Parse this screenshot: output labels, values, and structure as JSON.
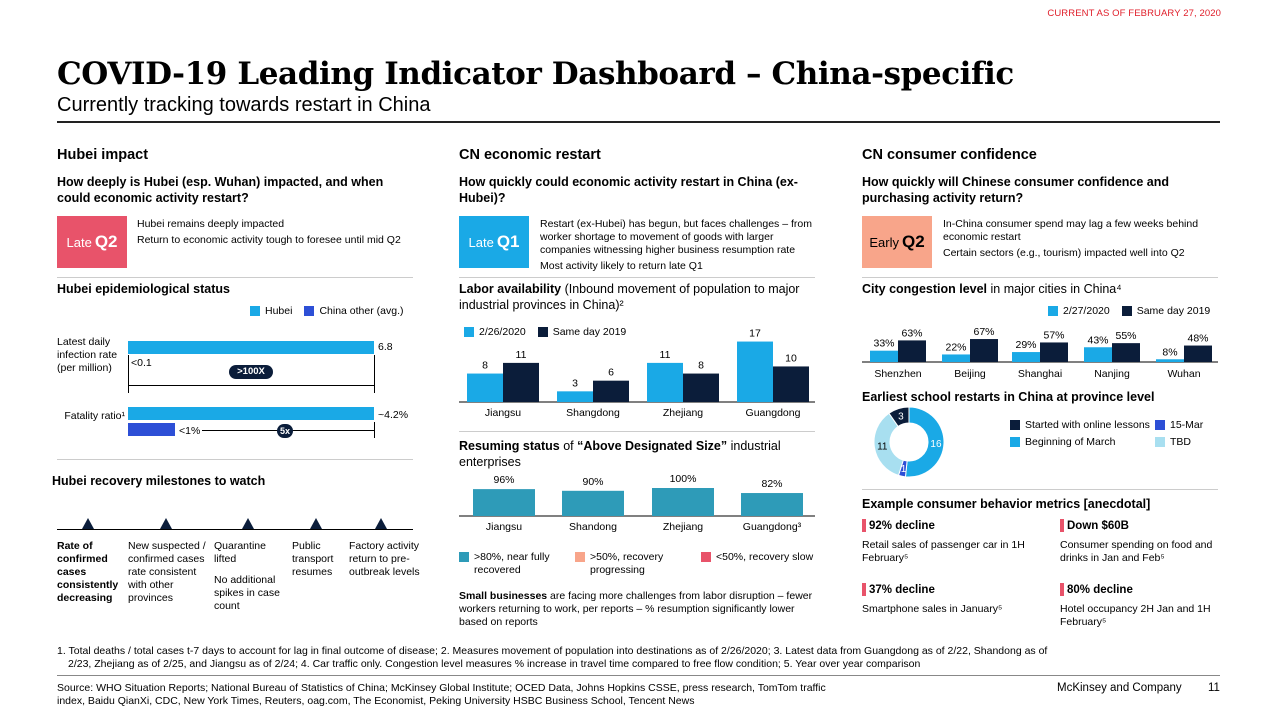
{
  "header": {
    "current": "CURRENT AS OF FEBRUARY 27, 2020",
    "title": "COVID-19 Leading Indicator Dashboard – China-specific",
    "subtitle": "Currently tracking towards restart in China"
  },
  "colors": {
    "cyan": "#1aa9e6",
    "navy": "#0b1d3a",
    "blue": "#2d4fd6",
    "light": "#a8dff0",
    "red": "#e8536a",
    "salmon": "#f8a58a",
    "teal": "#2e9bb8"
  },
  "hubei": {
    "heading": "Hubei impact",
    "question": "How deeply is Hubei (esp. Wuhan) impacted, and when could economic activity restart?",
    "tag_pre": "Late",
    "tag_q": "Q2",
    "notes": [
      "Hubei remains deeply impacted",
      "Return to economic activity tough to foresee until mid Q2"
    ],
    "epi_heading": "Hubei epidemiological status",
    "legend": [
      "Hubei",
      "China other (avg.)"
    ],
    "row1_label": "Latest daily infection rate (per million)",
    "row1_hubei": "6.8",
    "row1_other": "<0.1",
    "row1_mult": ">100X",
    "row2_label": "Fatality ratio¹",
    "row2_hubei": "~4.2%",
    "row2_other": "<1%",
    "row2_mult": "5x",
    "milestones_heading": "Hubei recovery milestones to watch",
    "milestones": [
      {
        "text": "Rate of confirmed cases consistently decreasing",
        "bold": true
      },
      {
        "text": "New suspected / confirmed cases rate consistent with other provinces",
        "bold": false
      },
      {
        "text": "Quarantine lifted",
        "extra": "No additional spikes in case count",
        "bold": false
      },
      {
        "text": "Public transport resumes",
        "bold": false
      },
      {
        "text": "Factory activity return to pre-outbreak levels",
        "bold": false
      }
    ]
  },
  "economic": {
    "heading": "CN economic restart",
    "question": "How quickly could economic activity restart in China (ex-Hubei)?",
    "tag_pre": "Late",
    "tag_q": "Q1",
    "notes": [
      "Restart (ex-Hubei) has begun, but faces challenges – from worker shortage to movement of goods with larger companies witnessing higher business resumption rate",
      "Most activity likely to return late Q1"
    ],
    "labor_heading_b": "Labor availability",
    "labor_heading_n": " (Inbound movement of population to major industrial provinces in China)²",
    "legend": [
      "2/26/2020",
      "Same day 2019"
    ],
    "resuming_heading_b1": "Resuming status",
    "resuming_heading_n1": " of ",
    "resuming_heading_b2": "“Above Designated Size”",
    "resuming_heading_n2": " industrial enterprises",
    "resuming_legend": [
      ">80%, near fully recovered",
      ">50%, recovery progressing",
      "<50%, recovery slow"
    ],
    "small_b": "Small businesses",
    "small_n": " are facing more challenges from labor disruption – fewer workers returning to work, per reports – % resumption significantly lower based on reports"
  },
  "consumer": {
    "heading": "CN consumer confidence",
    "question": "How quickly will Chinese consumer confidence and purchasing activity return?",
    "tag_pre": "Early",
    "tag_q": "Q2",
    "notes": [
      "In-China consumer spend may lag a few weeks behind economic restart",
      "Certain sectors (e.g., tourism) impacted well into Q2"
    ],
    "city_heading_b": "City congestion level",
    "city_heading_n": " in major cities in China⁴",
    "legend": [
      "2/27/2020",
      "Same day 2019"
    ],
    "school_heading": "Earliest school restarts in China at province level",
    "school_legend": [
      "Started with online lessons",
      "15-Mar",
      "Beginning of March",
      "TBD"
    ],
    "metrics_heading": "Example consumer behavior metrics [anecdotal]",
    "metrics": [
      {
        "h": "92% decline",
        "t": "Retail sales of passenger car in 1H February⁵"
      },
      {
        "h": "Down $60B",
        "t": "Consumer spending on food and drinks in Jan and Feb⁵"
      },
      {
        "h": "37% decline",
        "t": "Smartphone sales in January⁵"
      },
      {
        "h": "80% decline",
        "t": "Hotel occupancy 2H Jan and 1H February⁵"
      }
    ]
  },
  "chart_data": [
    {
      "type": "bar",
      "title": "Labor availability",
      "categories": [
        "Jiangsu",
        "Shangdong",
        "Zhejiang",
        "Guangdong"
      ],
      "series": [
        {
          "name": "2/26/2020",
          "values": [
            8,
            3,
            11,
            17
          ]
        },
        {
          "name": "Same day 2019",
          "values": [
            11,
            6,
            8,
            10
          ]
        }
      ],
      "ylim": [
        0,
        18
      ]
    },
    {
      "type": "bar",
      "title": "Resuming status",
      "categories": [
        "Jiangsu",
        "Shandong",
        "Zhejiang",
        "Guangdong³"
      ],
      "values": [
        96,
        90,
        100,
        82
      ],
      "value_labels": [
        "96%",
        "90%",
        "100%",
        "82%"
      ],
      "ylim": [
        0,
        100
      ]
    },
    {
      "type": "bar",
      "title": "City congestion level",
      "categories": [
        "Shenzhen",
        "Beijing",
        "Shanghai",
        "Nanjing",
        "Wuhan"
      ],
      "series": [
        {
          "name": "2/27/2020",
          "values": [
            33,
            22,
            29,
            43,
            8
          ]
        },
        {
          "name": "Same day 2019",
          "values": [
            63,
            67,
            57,
            55,
            48
          ]
        }
      ],
      "ylim": [
        0,
        70
      ]
    },
    {
      "type": "pie",
      "title": "Earliest school restarts",
      "categories": [
        "Beginning of March",
        "15-Mar",
        "TBD",
        "Started with online lessons"
      ],
      "values": [
        16,
        1,
        11,
        3
      ]
    }
  ],
  "footnotes": {
    "notes": "1. Total deaths / total cases t-7 days to account for lag in final outcome of disease;  2. Measures movement of population into destinations as of 2/26/2020;  3. Latest data from Guangdong as of 2/22, Shandong as of 2/23, Zhejiang as of 2/25, and Jiangsu as of 2/24;  4. Car traffic only. Congestion level measures % increase in travel time compared to free flow condition;  5. Year over year comparison",
    "source": "Source: WHO Situation Reports; National Bureau of Statistics of China; McKinsey Global Institute; OCED Data, Johns Hopkins CSSE, press research, TomTom traffic index, Baidu QianXi, CDC, New York Times, Reuters, oag.com, The Economist, Peking University HSBC Business School, Tencent News",
    "company": "McKinsey and Company",
    "page": "11"
  }
}
